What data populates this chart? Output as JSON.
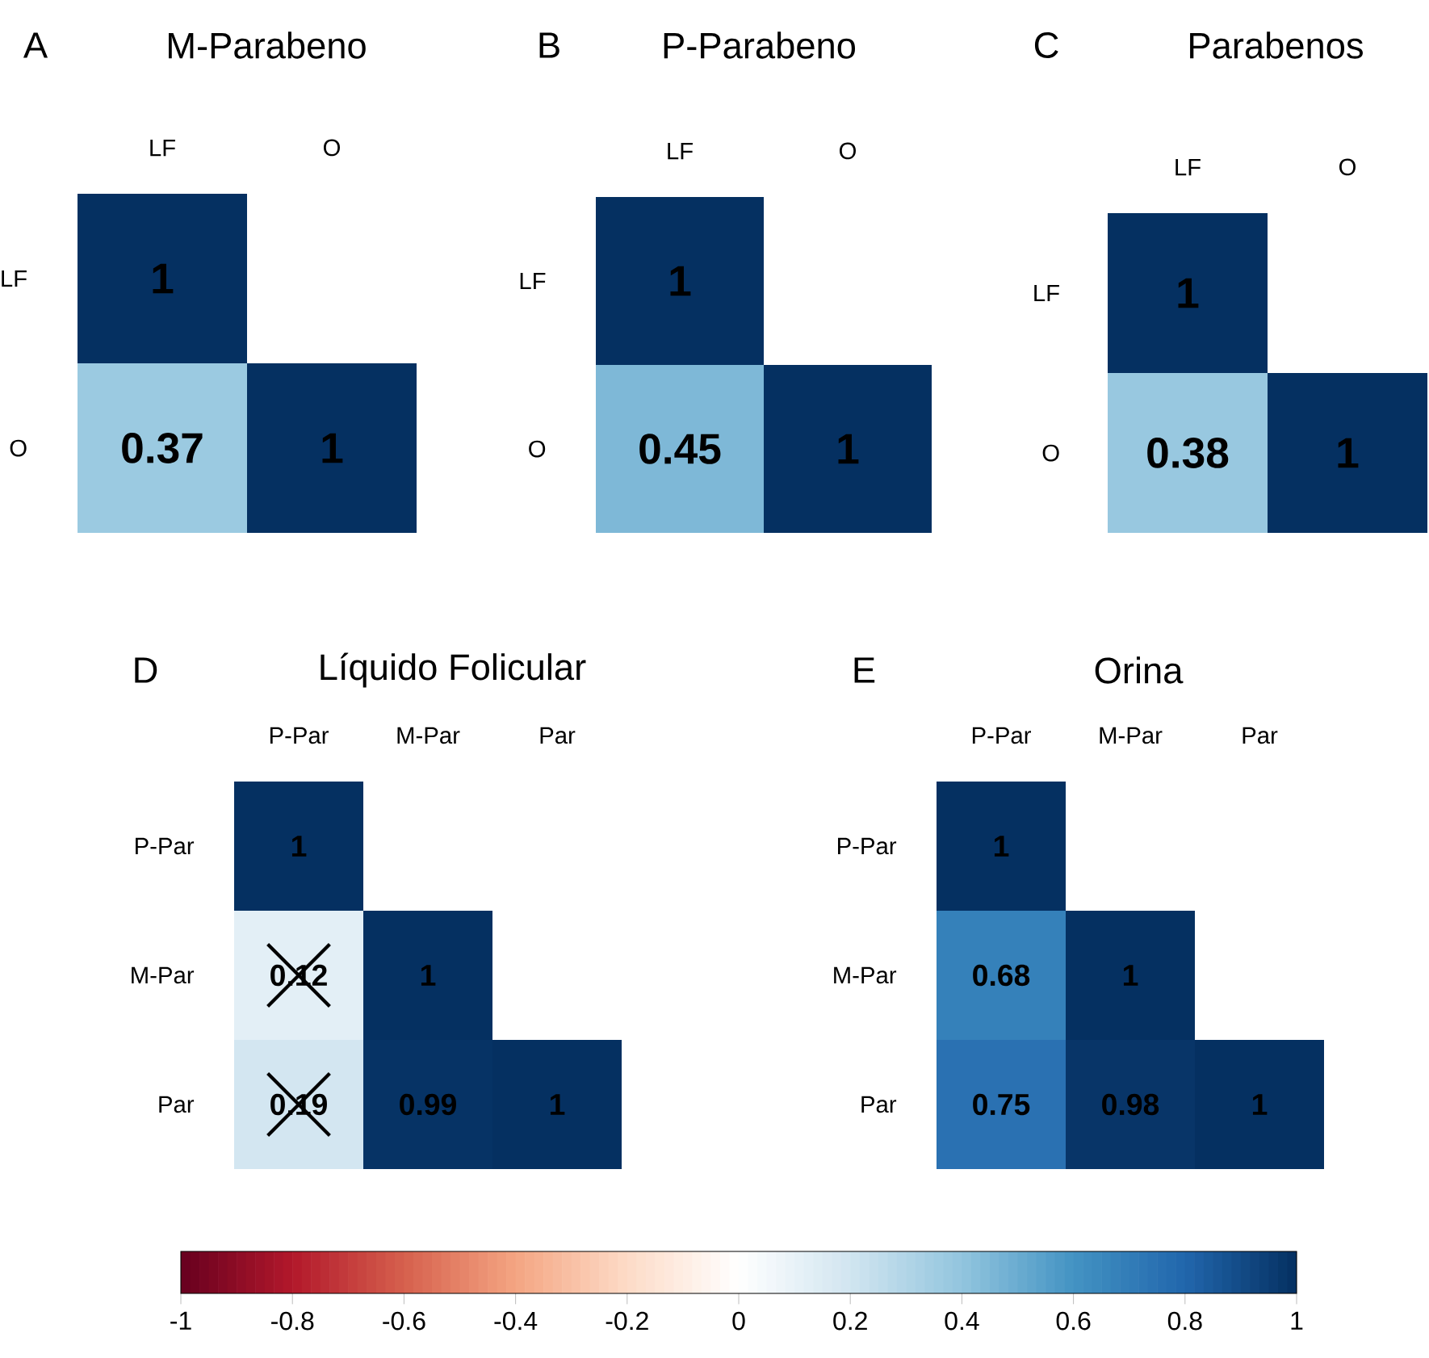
{
  "chart_data": [
    {
      "type": "heatmap",
      "title": "M-Parabeno",
      "annotations": [
        "A"
      ],
      "categories": [
        "LF",
        "O"
      ],
      "y_categories": [
        "LF",
        "O"
      ],
      "cells": [
        [
          1,
          null
        ],
        [
          0.37,
          1
        ]
      ],
      "data_labels": true
    },
    {
      "type": "heatmap",
      "title": "P-Parabeno",
      "annotations": [
        "B"
      ],
      "categories": [
        "LF",
        "O"
      ],
      "y_categories": [
        "LF",
        "O"
      ],
      "cells": [
        [
          1,
          null
        ],
        [
          0.45,
          1
        ]
      ],
      "data_labels": true
    },
    {
      "type": "heatmap",
      "title": "Parabenos",
      "annotations": [
        "C"
      ],
      "categories": [
        "LF",
        "O"
      ],
      "y_categories": [
        "LF",
        "O"
      ],
      "cells": [
        [
          1,
          null
        ],
        [
          0.38,
          1
        ]
      ],
      "data_labels": true
    },
    {
      "type": "heatmap",
      "title": "Líquido Folicular",
      "annotations": [
        "D"
      ],
      "categories": [
        "P-Par",
        "M-Par",
        "Par"
      ],
      "y_categories": [
        "P-Par",
        "M-Par",
        "Par"
      ],
      "cells": [
        [
          1,
          null,
          null
        ],
        [
          0.12,
          1,
          null
        ],
        [
          0.19,
          0.99,
          1
        ]
      ],
      "data_labels": true
    },
    {
      "type": "heatmap",
      "title": "Orina",
      "annotations": [
        "E"
      ],
      "categories": [
        "P-Par",
        "M-Par",
        "Par"
      ],
      "y_categories": [
        "P-Par",
        "M-Par",
        "Par"
      ],
      "cells": [
        [
          1,
          null,
          null
        ],
        [
          0.68,
          1,
          null
        ],
        [
          0.75,
          0.98,
          1
        ]
      ],
      "data_labels": true,
      "clim": [
        -1,
        1
      ],
      "cticks": [
        -1,
        -0.8,
        -0.6,
        -0.4,
        -0.2,
        0,
        0.2,
        0.4,
        0.6,
        0.8,
        1
      ]
    }
  ]
}
